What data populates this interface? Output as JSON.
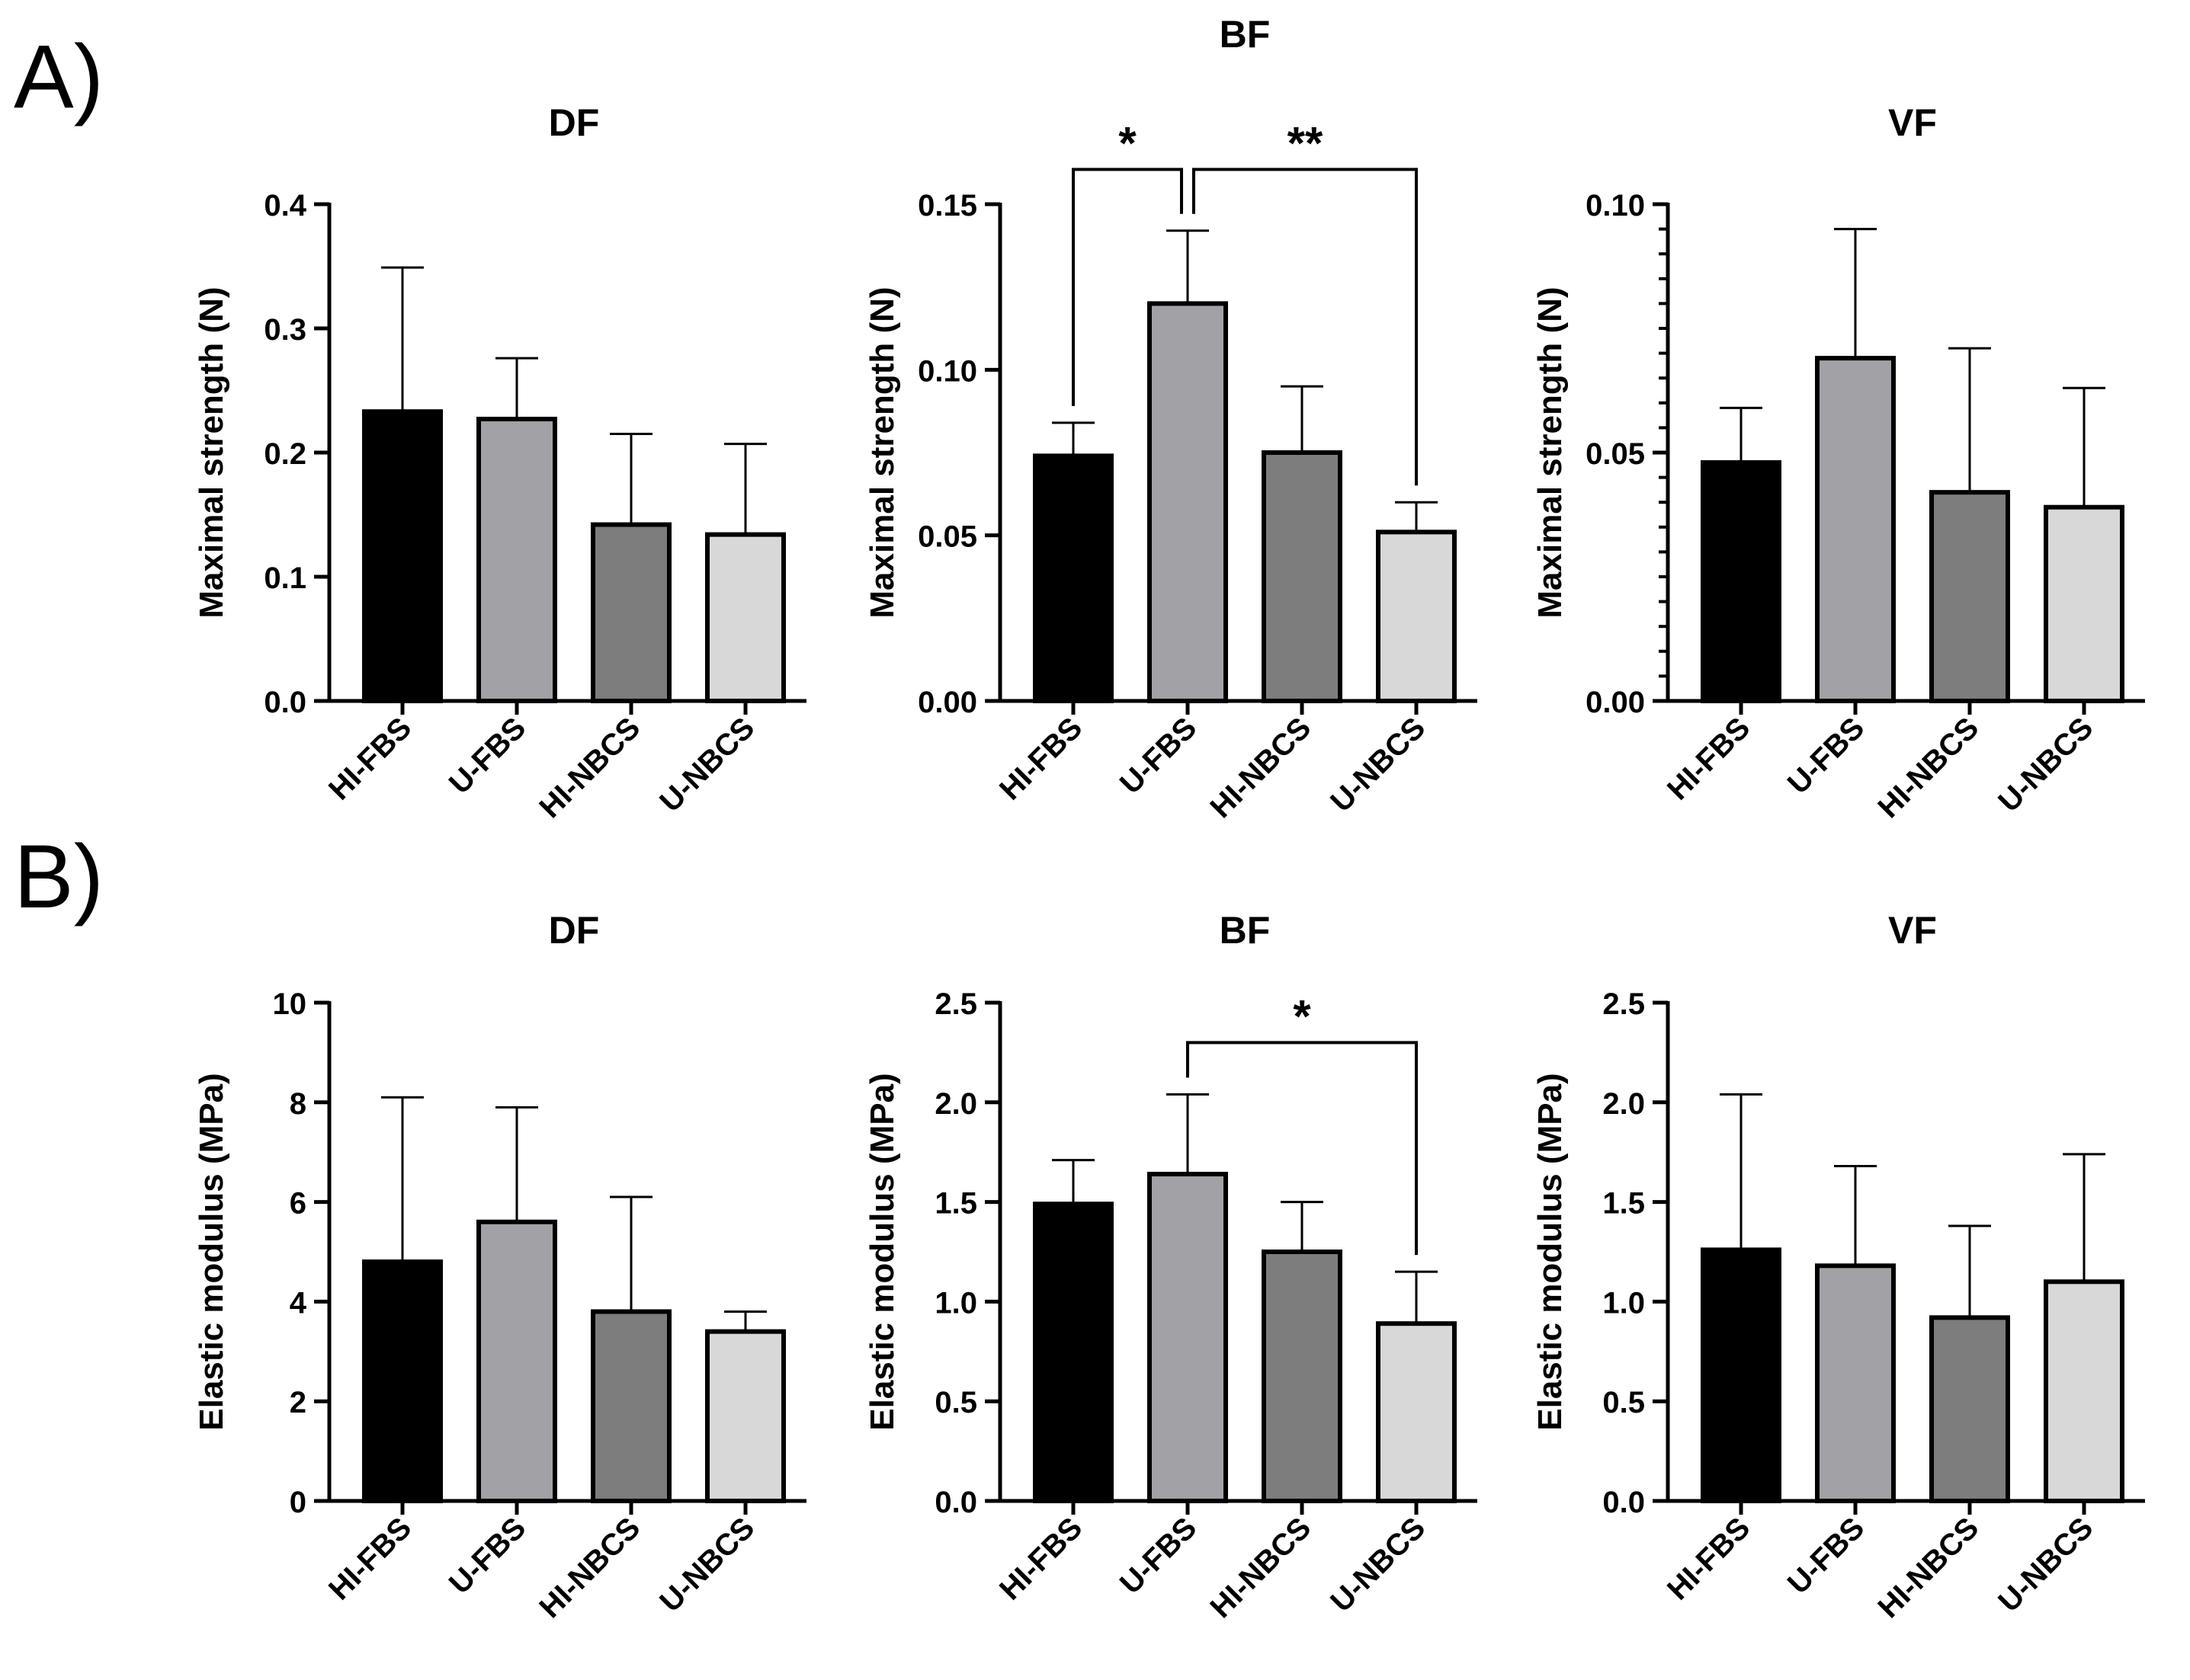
{
  "figure": {
    "panel_a_label": "A)",
    "panel_b_label": "B)",
    "category_colors": [
      "#000000",
      "#a2a1a6",
      "#7d7d7d",
      "#d8d8d8"
    ]
  },
  "chart_data": [
    {
      "type": "bar",
      "panel": "A",
      "title": "DF",
      "categories": [
        "HI-FBS",
        "U-FBS",
        "HI-NBCS",
        "U-NBCS"
      ],
      "values": [
        0.233,
        0.227,
        0.142,
        0.134
      ],
      "errors": [
        0.116,
        0.049,
        0.073,
        0.073
      ],
      "ylabel": "Maximal strength (N)",
      "xlabel": "",
      "ylim": [
        0,
        0.4
      ],
      "yticks": [
        0,
        0.1,
        0.2,
        0.3,
        0.4
      ],
      "yticklabels": [
        "0.0",
        "0.1",
        "0.2",
        "0.3",
        "0.4"
      ],
      "minor_ticks": 0,
      "significance": []
    },
    {
      "type": "bar",
      "panel": "A",
      "title": "BF",
      "categories": [
        "HI-FBS",
        "U-FBS",
        "HI-NBCS",
        "U-NBCS"
      ],
      "values": [
        0.074,
        0.12,
        0.075,
        0.051
      ],
      "errors": [
        0.01,
        0.022,
        0.02,
        0.009
      ],
      "ylabel": "Maximal strength (N)",
      "xlabel": "",
      "ylim": [
        0,
        0.15
      ],
      "yticks": [
        0,
        0.05,
        0.1,
        0.15
      ],
      "yticklabels": [
        "0.00",
        "0.05",
        "0.10",
        "0.15"
      ],
      "minor_ticks": 0,
      "significance": [
        {
          "from": 0,
          "to": 1,
          "label": "*",
          "level": 0.1605
        },
        {
          "from": 1,
          "to": 3,
          "label": "**",
          "level": 0.1605
        }
      ]
    },
    {
      "type": "bar",
      "panel": "A",
      "title": "VF",
      "categories": [
        "HI-FBS",
        "U-FBS",
        "HI-NBCS",
        "U-NBCS"
      ],
      "values": [
        0.048,
        0.069,
        0.042,
        0.039
      ],
      "errors": [
        0.011,
        0.026,
        0.029,
        0.024
      ],
      "ylabel": "Maximal strength (N)",
      "xlabel": "",
      "ylim": [
        0,
        0.1
      ],
      "yticks": [
        0,
        0.05,
        0.1
      ],
      "yticklabels": [
        "0.00",
        "0.05",
        "0.10"
      ],
      "minor_ticks": 9,
      "significance": []
    },
    {
      "type": "bar",
      "panel": "B",
      "title": "DF",
      "categories": [
        "HI-FBS",
        "U-FBS",
        "HI-NBCS",
        "U-NBCS"
      ],
      "values": [
        4.8,
        5.6,
        3.8,
        3.4
      ],
      "errors": [
        3.3,
        2.3,
        2.3,
        0.4
      ],
      "ylabel": "Elastic modulus (MPa)",
      "xlabel": "",
      "ylim": [
        0,
        10
      ],
      "yticks": [
        0,
        2,
        4,
        6,
        8,
        10
      ],
      "yticklabels": [
        "0",
        "2",
        "4",
        "6",
        "8",
        "10"
      ],
      "minor_ticks": 0,
      "significance": []
    },
    {
      "type": "bar",
      "panel": "B",
      "title": "BF",
      "categories": [
        "HI-FBS",
        "U-FBS",
        "HI-NBCS",
        "U-NBCS"
      ],
      "values": [
        1.49,
        1.64,
        1.25,
        0.89
      ],
      "errors": [
        0.22,
        0.4,
        0.25,
        0.26
      ],
      "ylabel": "Elastic modulus (MPa)",
      "xlabel": "",
      "ylim": [
        0,
        2.5
      ],
      "yticks": [
        0,
        0.5,
        1,
        1.5,
        2,
        2.5
      ],
      "yticklabels": [
        "0.0",
        "0.5",
        "1.0",
        "1.5",
        "2.0",
        "2.5"
      ],
      "minor_ticks": 0,
      "significance": [
        {
          "from": 1,
          "to": 3,
          "label": "*",
          "level": 2.3
        }
      ]
    },
    {
      "type": "bar",
      "panel": "B",
      "title": "VF",
      "categories": [
        "HI-FBS",
        "U-FBS",
        "HI-NBCS",
        "U-NBCS"
      ],
      "values": [
        1.26,
        1.18,
        0.92,
        1.1
      ],
      "errors": [
        0.78,
        0.5,
        0.46,
        0.64
      ],
      "ylabel": "Elastic modulus (MPa)",
      "xlabel": "",
      "ylim": [
        0,
        2.5
      ],
      "yticks": [
        0,
        0.5,
        1,
        1.5,
        2,
        2.5
      ],
      "yticklabels": [
        "0.0",
        "0.5",
        "1.0",
        "1.5",
        "2.0",
        "2.5"
      ],
      "minor_ticks": 0,
      "significance": []
    }
  ]
}
